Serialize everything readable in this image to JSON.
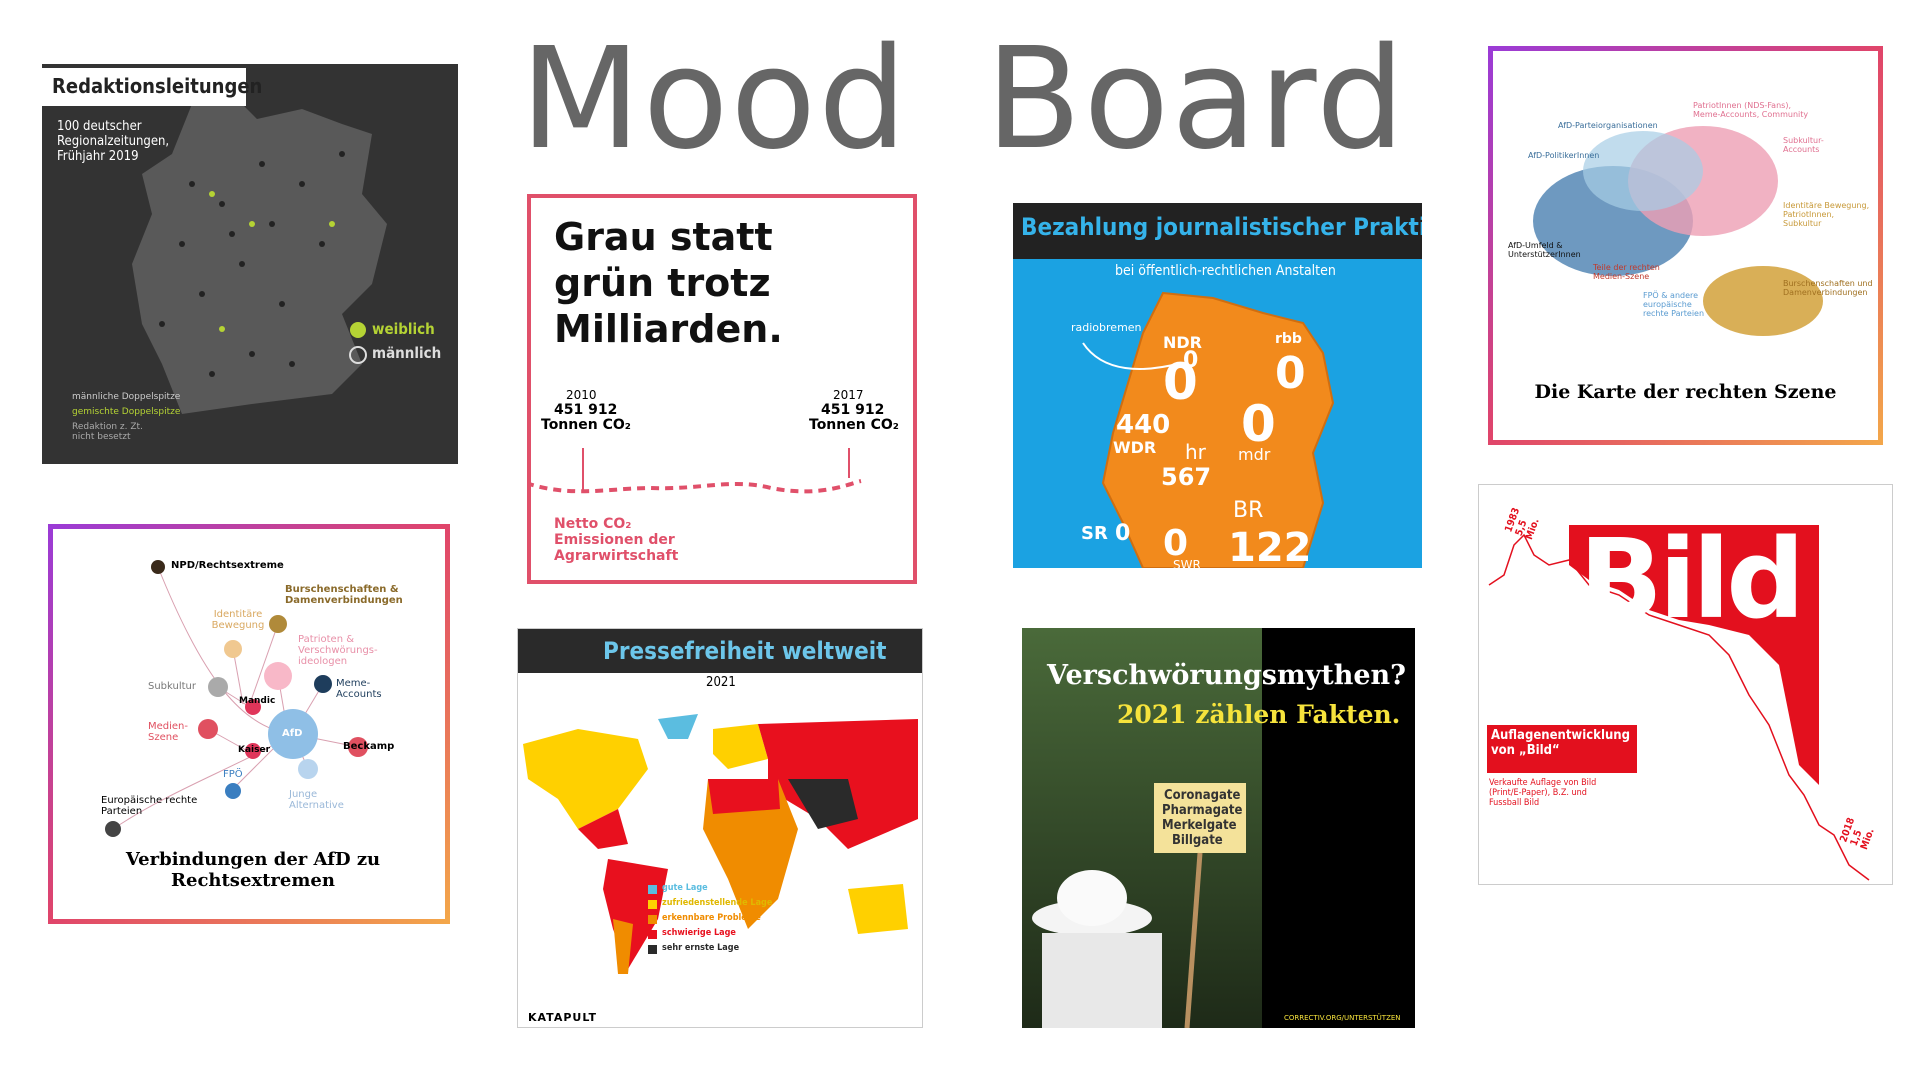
{
  "title": "Mood Board",
  "tiles": [
    {
      "title": "Redaktionsleitungen",
      "subtitle": "100 deutscher Regionalzeitungen, Frühjahr 2019",
      "legend": [
        "weiblich",
        "männlich"
      ],
      "key": [
        "männliche Doppelspitze",
        "gemischte Doppelspitze",
        "Redaktion z. Zt. nicht besetzt"
      ]
    },
    {
      "title": "Grau statt grün trotz Milliarden.",
      "start_year": "2010",
      "start_value": "451 912",
      "end_year": "2017",
      "end_value": "451 912",
      "unit": "Tonnen CO₂",
      "caption": "Netto CO₂ Emissionen der Agrarwirtschaft"
    },
    {
      "title": "Bezahlung journalistischer Praktika",
      "subtitle": "bei öffentlich-rechtlichen Anstalten",
      "stations": [
        {
          "name": "radiobremen",
          "value": 0
        },
        {
          "name": "NDR",
          "value": 0
        },
        {
          "name": "rbb",
          "value": 0
        },
        {
          "name": "WDR",
          "value": 440
        },
        {
          "name": "mdr",
          "value": 0
        },
        {
          "name": "hr",
          "value": 567
        },
        {
          "name": "SR",
          "value": 0
        },
        {
          "name": "BR",
          "value": 122
        },
        {
          "name": "SWR",
          "value": 0
        }
      ]
    },
    {
      "title": "Die Karte der rechten Szene",
      "labels": [
        "AfD-Parteiorganisationen",
        "AfD-PolitikerInnen",
        "PatriotInnen (NDS-Fans), Meme-Accounts, Community",
        "Subkultur-Accounts",
        "Identitäre Bewegung, PatriotInnen, Subkultur",
        "AfD-Umfeld & UnterstützerInnen",
        "Teile der rechten Medien-Szene",
        "FPÖ & andere europäische rechte Parteien",
        "Burschenschaften und Damenverbindungen"
      ]
    },
    {
      "title": "Verbindungen der AfD zu Rechtsextremen",
      "nodes": [
        "NPD/Rechtsextreme",
        "Burschenschaften & Damenverbindungen",
        "Identitäre Bewegung",
        "Patrioten & Verschwörungs-ideologen",
        "Subkultur",
        "Meme-Accounts",
        "Mandic",
        "AfD",
        "Medien-Szene",
        "Kaiser",
        "Beckamp",
        "Europäische rechte Parteien",
        "FPÖ",
        "Junge Alternative"
      ]
    },
    {
      "title": "Pressefreiheit weltweit",
      "subtitle": "2021",
      "legend": [
        "gute Lage",
        "zufriedenstellende Lage",
        "erkennbare Probleme",
        "schwierige Lage",
        "sehr ernste Lage"
      ],
      "brand": "KATAPULT"
    },
    {
      "title": "Verschwörungsmythen?",
      "subtitle": "2021 zählen Fakten.",
      "sign": [
        "Coronagate",
        "Pharmagate",
        "Merkelgate",
        "Billgate"
      ],
      "footer": "CORRECTIV.ORG/UNTERSTÜTZEN"
    },
    {
      "title": "Bild",
      "start_label": "1983 5,5 Mio.",
      "end_label": "2018 1,5 Mio.",
      "box_title": "Auflagenentwicklung von „Bild“",
      "box_text": "Verkaufte Auflage von Bild (Print/E-Paper), B.Z. und Fussball Bild"
    }
  ]
}
